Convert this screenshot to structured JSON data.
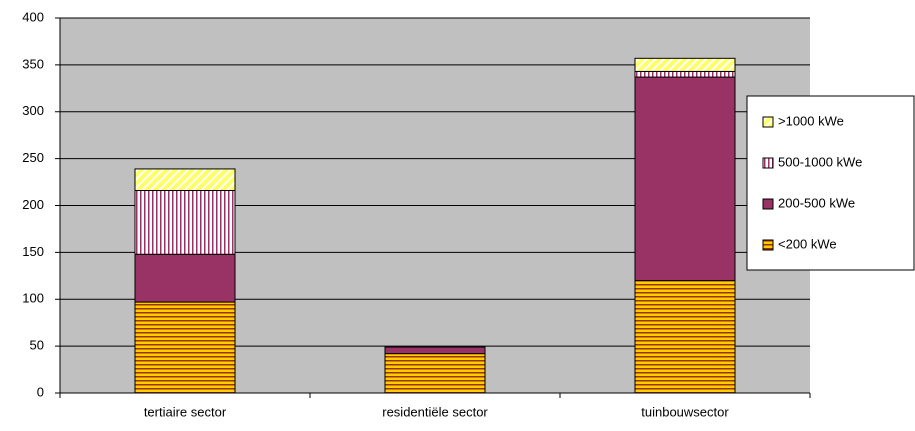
{
  "chart_data": {
    "type": "stacked_bar",
    "categories": [
      "tertiaire sector",
      "residentiële sector",
      "tuinbouwsector"
    ],
    "series": [
      {
        "name": "<200 kWe",
        "color": "#ffcc00",
        "values": [
          97,
          42,
          120
        ]
      },
      {
        "name": "200-500 kWe",
        "color": "#993366",
        "values": [
          51,
          7,
          217
        ]
      },
      {
        "name": "500-1000 kWe",
        "color": "#993366",
        "values": [
          68,
          0,
          6
        ]
      },
      {
        "name": ">1000 kWe",
        "color": "#ffff66",
        "values": [
          23,
          0,
          14
        ]
      }
    ],
    "ylim": [
      0,
      400
    ],
    "yticks": [
      0,
      50,
      100,
      150,
      200,
      250,
      300,
      350,
      400
    ],
    "grid": true,
    "legend": "right",
    "background": "#c0c0c0"
  }
}
